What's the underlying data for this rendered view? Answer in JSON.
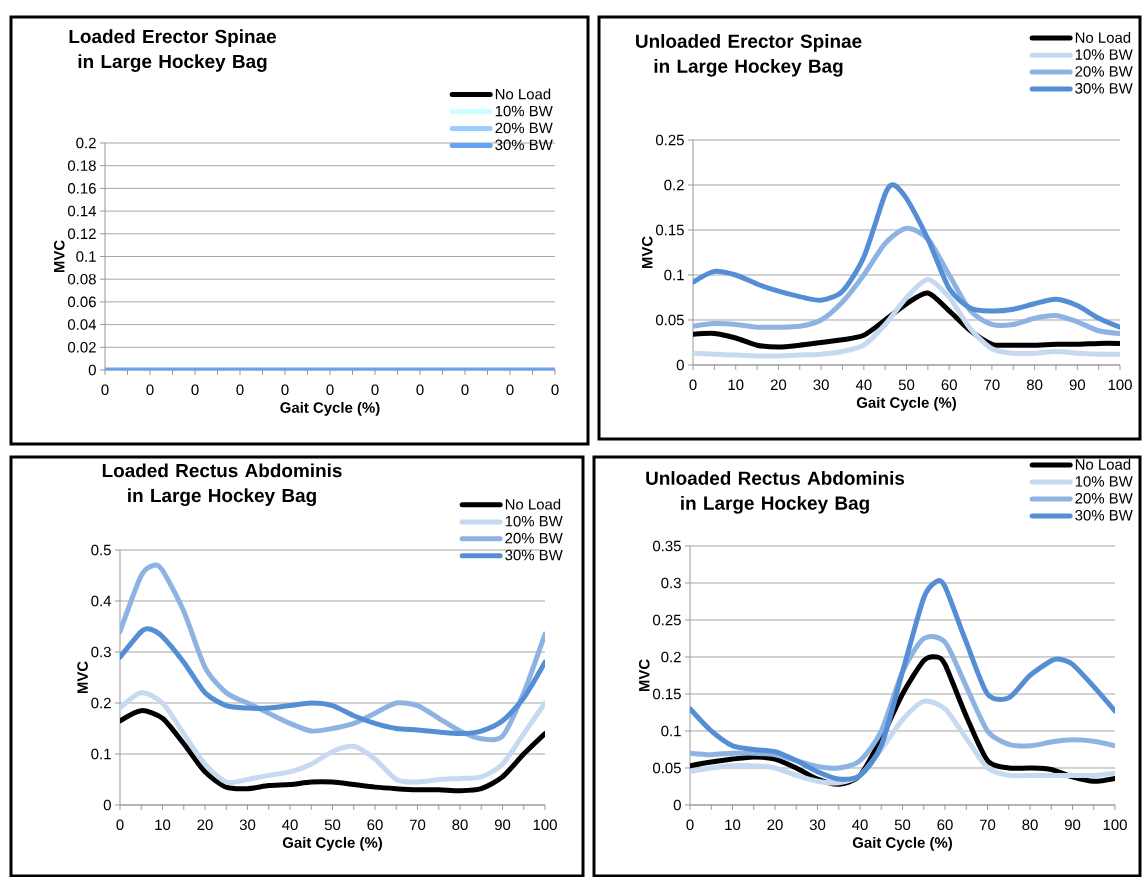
{
  "chart_data": [
    {
      "type": "line",
      "title": "Loaded Erector Spinae in Large Hockey Bag",
      "xlabel": "Gait Cycle (%)",
      "ylabel": "MVC",
      "categories": [
        "0",
        "0",
        "0",
        "0",
        "0",
        "0",
        "0",
        "0",
        "0",
        "0",
        "0"
      ],
      "ylim": [
        0,
        0.2
      ],
      "yticks": [
        0,
        0.02,
        0.04,
        0.06,
        0.08,
        0.1,
        0.12,
        0.14,
        0.16,
        0.18,
        0.2
      ],
      "grid": "y",
      "legend": "top right",
      "series": [
        {
          "name": "No Load",
          "color": "#000000",
          "values": [
            null,
            null,
            null,
            null,
            null,
            null,
            null,
            null,
            null,
            null,
            null
          ]
        },
        {
          "name": "10% BW",
          "color": "#ccffff",
          "values": [
            null,
            null,
            null,
            null,
            null,
            null,
            null,
            null,
            null,
            null,
            null
          ]
        },
        {
          "name": "20% BW",
          "color": "#99ccff",
          "values": [
            null,
            null,
            null,
            null,
            null,
            null,
            null,
            null,
            null,
            null,
            null
          ]
        },
        {
          "name": "30% BW",
          "color": "#66a3f5",
          "values": [
            0,
            0,
            0,
            0,
            0,
            0,
            0,
            0,
            0,
            0,
            0
          ]
        }
      ]
    },
    {
      "type": "line",
      "title": "Unloaded Erector Spinae in Large Hockey Bag",
      "xlabel": "Gait Cycle (%)",
      "ylabel": "MVC",
      "xlim": [
        0,
        100
      ],
      "xticks": [
        0,
        10,
        20,
        30,
        40,
        50,
        60,
        70,
        80,
        90,
        100
      ],
      "ylim": [
        0,
        0.25
      ],
      "yticks": [
        0,
        0.05,
        0.1,
        0.15,
        0.2,
        0.25
      ],
      "grid": "y",
      "legend": "top right",
      "series": [
        {
          "name": "No Load",
          "color": "#000000",
          "x": [
            0,
            5,
            10,
            15,
            20,
            25,
            30,
            35,
            40,
            45,
            50,
            55,
            60,
            65,
            70,
            75,
            80,
            85,
            90,
            95,
            100
          ],
          "values": [
            0.034,
            0.035,
            0.03,
            0.022,
            0.02,
            0.022,
            0.025,
            0.028,
            0.033,
            0.05,
            0.068,
            0.08,
            0.06,
            0.038,
            0.023,
            0.022,
            0.022,
            0.023,
            0.023,
            0.024,
            0.024
          ]
        },
        {
          "name": "10% BW",
          "color": "#c6d9f1",
          "x": [
            0,
            5,
            10,
            15,
            20,
            25,
            30,
            35,
            40,
            45,
            50,
            55,
            60,
            65,
            70,
            75,
            80,
            85,
            90,
            95,
            100
          ],
          "values": [
            0.013,
            0.012,
            0.011,
            0.01,
            0.01,
            0.011,
            0.012,
            0.015,
            0.022,
            0.045,
            0.075,
            0.095,
            0.075,
            0.04,
            0.018,
            0.013,
            0.013,
            0.015,
            0.013,
            0.012,
            0.012
          ]
        },
        {
          "name": "20% BW",
          "color": "#8db3e2",
          "x": [
            0,
            5,
            10,
            15,
            20,
            25,
            30,
            35,
            40,
            45,
            50,
            55,
            60,
            65,
            70,
            75,
            80,
            85,
            90,
            95,
            100
          ],
          "values": [
            0.043,
            0.046,
            0.045,
            0.042,
            0.042,
            0.043,
            0.05,
            0.07,
            0.1,
            0.135,
            0.152,
            0.14,
            0.1,
            0.06,
            0.045,
            0.045,
            0.052,
            0.055,
            0.048,
            0.038,
            0.035
          ]
        },
        {
          "name": "30% BW",
          "color": "#558ed5",
          "x": [
            0,
            5,
            10,
            15,
            20,
            25,
            30,
            35,
            40,
            45,
            47,
            50,
            55,
            60,
            65,
            70,
            75,
            80,
            85,
            90,
            95,
            100
          ],
          "values": [
            0.092,
            0.104,
            0.1,
            0.09,
            0.082,
            0.076,
            0.072,
            0.082,
            0.12,
            0.19,
            0.2,
            0.185,
            0.14,
            0.085,
            0.063,
            0.06,
            0.062,
            0.068,
            0.073,
            0.066,
            0.052,
            0.042
          ]
        }
      ]
    },
    {
      "type": "line",
      "title": "Loaded Rectus Abdominis in Large Hockey Bag",
      "xlabel": "Gait Cycle (%)",
      "ylabel": "MVC",
      "xlim": [
        0,
        100
      ],
      "xticks": [
        0,
        10,
        20,
        30,
        40,
        50,
        60,
        70,
        80,
        90,
        100
      ],
      "ylim": [
        0,
        0.5
      ],
      "yticks": [
        0,
        0.1,
        0.2,
        0.3,
        0.4,
        0.5
      ],
      "grid": "y",
      "legend": "top right",
      "series": [
        {
          "name": "No Load",
          "color": "#000000",
          "x": [
            0,
            5,
            10,
            15,
            20,
            25,
            30,
            35,
            40,
            45,
            50,
            55,
            60,
            65,
            70,
            75,
            80,
            85,
            90,
            95,
            100
          ],
          "values": [
            0.165,
            0.185,
            0.17,
            0.12,
            0.065,
            0.035,
            0.032,
            0.038,
            0.04,
            0.045,
            0.045,
            0.04,
            0.035,
            0.032,
            0.03,
            0.03,
            0.028,
            0.032,
            0.055,
            0.1,
            0.14
          ]
        },
        {
          "name": "10% BW",
          "color": "#c6d9f1",
          "x": [
            0,
            5,
            10,
            15,
            20,
            25,
            30,
            35,
            40,
            45,
            50,
            55,
            60,
            65,
            70,
            75,
            80,
            85,
            90,
            95,
            100
          ],
          "values": [
            0.19,
            0.22,
            0.2,
            0.14,
            0.08,
            0.045,
            0.05,
            0.058,
            0.065,
            0.08,
            0.105,
            0.115,
            0.09,
            0.05,
            0.045,
            0.05,
            0.052,
            0.055,
            0.08,
            0.14,
            0.2
          ]
        },
        {
          "name": "20% BW",
          "color": "#8db3e2",
          "x": [
            0,
            5,
            8,
            10,
            15,
            20,
            25,
            30,
            35,
            40,
            45,
            50,
            55,
            60,
            65,
            70,
            75,
            80,
            85,
            90,
            95,
            100
          ],
          "values": [
            0.34,
            0.45,
            0.47,
            0.46,
            0.38,
            0.27,
            0.22,
            0.2,
            0.18,
            0.16,
            0.145,
            0.15,
            0.16,
            0.18,
            0.2,
            0.195,
            0.17,
            0.145,
            0.13,
            0.135,
            0.22,
            0.335
          ]
        },
        {
          "name": "30% BW",
          "color": "#558ed5",
          "x": [
            0,
            5,
            7,
            10,
            15,
            20,
            25,
            30,
            35,
            40,
            45,
            50,
            55,
            60,
            65,
            70,
            75,
            80,
            85,
            90,
            95,
            100
          ],
          "values": [
            0.29,
            0.34,
            0.345,
            0.33,
            0.28,
            0.22,
            0.195,
            0.19,
            0.19,
            0.195,
            0.2,
            0.195,
            0.175,
            0.16,
            0.15,
            0.147,
            0.143,
            0.14,
            0.145,
            0.165,
            0.21,
            0.28
          ]
        }
      ]
    },
    {
      "type": "line",
      "title": "Unloaded Rectus Abdominis in Large Hockey Bag",
      "xlabel": "Gait Cycle (%)",
      "ylabel": "MVC",
      "xlim": [
        0,
        100
      ],
      "xticks": [
        0,
        10,
        20,
        30,
        40,
        50,
        60,
        70,
        80,
        90,
        100
      ],
      "ylim": [
        0,
        0.35
      ],
      "yticks": [
        0,
        0.05,
        0.1,
        0.15,
        0.2,
        0.25,
        0.3,
        0.35
      ],
      "grid": "y",
      "legend": "top right",
      "series": [
        {
          "name": "No Load",
          "color": "#000000",
          "x": [
            0,
            5,
            10,
            15,
            20,
            25,
            30,
            35,
            40,
            45,
            50,
            55,
            58,
            60,
            65,
            70,
            75,
            80,
            85,
            90,
            95,
            100
          ],
          "values": [
            0.053,
            0.058,
            0.062,
            0.065,
            0.062,
            0.05,
            0.035,
            0.028,
            0.04,
            0.09,
            0.15,
            0.195,
            0.2,
            0.19,
            0.12,
            0.06,
            0.05,
            0.05,
            0.048,
            0.038,
            0.032,
            0.036
          ]
        },
        {
          "name": "10% BW",
          "color": "#c6d9f1",
          "x": [
            0,
            5,
            10,
            15,
            20,
            25,
            30,
            35,
            40,
            45,
            50,
            55,
            60,
            65,
            70,
            75,
            80,
            85,
            90,
            95,
            100
          ],
          "values": [
            0.045,
            0.05,
            0.053,
            0.053,
            0.05,
            0.04,
            0.032,
            0.03,
            0.04,
            0.075,
            0.115,
            0.14,
            0.13,
            0.09,
            0.05,
            0.04,
            0.04,
            0.04,
            0.04,
            0.04,
            0.043
          ]
        },
        {
          "name": "20% BW",
          "color": "#8db3e2",
          "x": [
            0,
            5,
            10,
            15,
            20,
            25,
            30,
            35,
            40,
            45,
            50,
            55,
            60,
            65,
            70,
            75,
            80,
            85,
            90,
            95,
            100
          ],
          "values": [
            0.07,
            0.068,
            0.07,
            0.07,
            0.068,
            0.06,
            0.052,
            0.05,
            0.06,
            0.1,
            0.18,
            0.225,
            0.22,
            0.16,
            0.1,
            0.082,
            0.08,
            0.085,
            0.088,
            0.086,
            0.08
          ]
        },
        {
          "name": "30% BW",
          "color": "#558ed5",
          "x": [
            0,
            5,
            10,
            15,
            20,
            25,
            30,
            35,
            40,
            45,
            50,
            55,
            58,
            60,
            65,
            70,
            75,
            80,
            85,
            87,
            90,
            95,
            100
          ],
          "values": [
            0.13,
            0.1,
            0.08,
            0.075,
            0.072,
            0.06,
            0.045,
            0.035,
            0.04,
            0.08,
            0.18,
            0.28,
            0.302,
            0.295,
            0.22,
            0.15,
            0.145,
            0.175,
            0.195,
            0.197,
            0.19,
            0.16,
            0.127
          ]
        }
      ]
    }
  ]
}
